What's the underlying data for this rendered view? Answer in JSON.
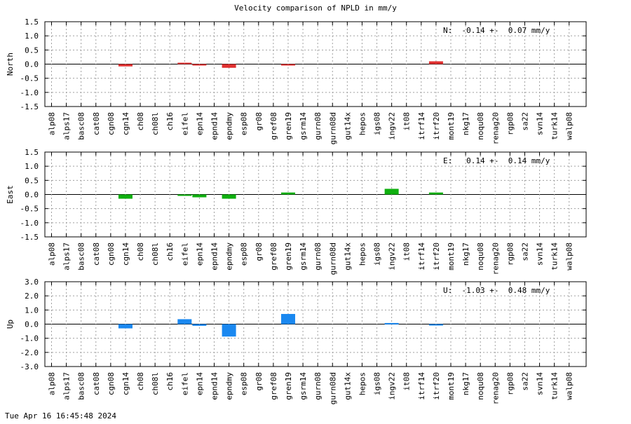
{
  "chart_data": {
    "title": "Velocity comparison of NPLD in mm/y",
    "timestamp": "Tue Apr 16 16:45:48 2024",
    "type": "bar",
    "categories": [
      "alp08",
      "alps17",
      "basc08",
      "cat08",
      "cgn08",
      "cgn14",
      "ch08",
      "ch08l",
      "ch16",
      "eifel",
      "epn14",
      "epnd14",
      "epndmy",
      "esp08",
      "gr08",
      "gref08",
      "gren19",
      "gsrm14",
      "gurn08",
      "gurn08d",
      "gut14x",
      "hepos",
      "igs08",
      "ingv22",
      "it08",
      "itrf14",
      "itrf20",
      "mont19",
      "nkg17",
      "noqu08",
      "renag20",
      "rgp08",
      "sa22",
      "svn14",
      "turk14",
      "walp08"
    ],
    "panels": [
      {
        "ylabel": "North",
        "color": "#e03030",
        "ylim": [
          -1.5,
          1.5
        ],
        "yticks": [
          "1.5",
          "1.0",
          "0.5",
          "0.0",
          "-0.5",
          "-1.0",
          "-1.5"
        ],
        "ytick_values": [
          1.5,
          1.0,
          0.5,
          0.0,
          -0.5,
          -1.0,
          -1.5
        ],
        "annotation": "N:  -0.14 +-  0.07 mm/y",
        "values": [
          0,
          0,
          0,
          0,
          0,
          -0.08,
          0,
          0,
          0,
          0.05,
          -0.03,
          0,
          -0.13,
          0,
          0,
          0,
          -0.03,
          0,
          0,
          0,
          0,
          0,
          0,
          0,
          0,
          0,
          0.1,
          0,
          0,
          0,
          0,
          0,
          0,
          0,
          0,
          0
        ]
      },
      {
        "ylabel": "East",
        "color": "#10b010",
        "ylim": [
          -1.5,
          1.5
        ],
        "yticks": [
          "1.5",
          "1.0",
          "0.5",
          "0.0",
          "-0.5",
          "-1.0",
          "-1.5"
        ],
        "ytick_values": [
          1.5,
          1.0,
          0.5,
          0.0,
          -0.5,
          -1.0,
          -1.5
        ],
        "annotation": "E:   0.14 +-  0.14 mm/y",
        "values": [
          0,
          0,
          0,
          0,
          0,
          -0.15,
          0,
          0,
          0,
          -0.05,
          -0.1,
          0,
          -0.15,
          0,
          0,
          0,
          0.07,
          0,
          0,
          0,
          0,
          0,
          0,
          0.2,
          0,
          0,
          0.07,
          0,
          0,
          0,
          0,
          0,
          0,
          0,
          0,
          0
        ]
      },
      {
        "ylabel": "Up",
        "color": "#1a88f0",
        "ylim": [
          -3.0,
          3.0
        ],
        "yticks": [
          "3.0",
          "2.0",
          "1.0",
          "0.0",
          "-1.0",
          "-2.0",
          "-3.0"
        ],
        "ytick_values": [
          3.0,
          2.0,
          1.0,
          0.0,
          -1.0,
          -2.0,
          -3.0
        ],
        "annotation": "U:  -1.03 +-  0.48 mm/y",
        "values": [
          0,
          0,
          0,
          0,
          0,
          -0.3,
          0,
          0,
          0,
          0.35,
          -0.12,
          0,
          -0.88,
          0,
          0,
          0,
          0.72,
          0,
          0,
          0,
          0,
          0,
          0,
          0.08,
          0,
          0,
          -0.05,
          0,
          0,
          0,
          0,
          0,
          0,
          0,
          0,
          0
        ]
      }
    ],
    "grid": true
  }
}
